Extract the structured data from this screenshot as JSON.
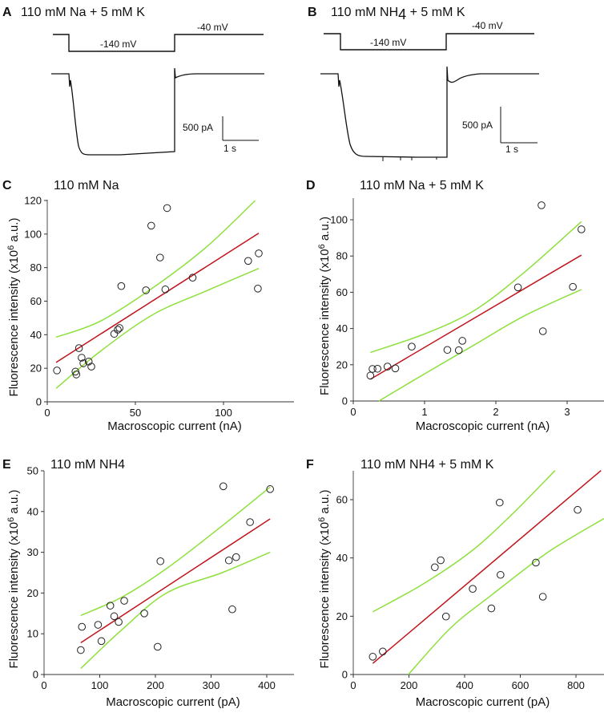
{
  "traces": [
    {
      "panel": "A",
      "title": "110 mM Na + 5 mM K",
      "step_labels": [
        "-140 mV",
        "-40 mV"
      ],
      "scale_current": "500 pA",
      "scale_time": "1 s"
    },
    {
      "panel": "B",
      "title_main": "110 mM NH",
      "title_sub": "4",
      "title_rest": " + 5 mM K",
      "step_labels": [
        "-140 mV",
        "-40 mV"
      ],
      "scale_current": "500 pA",
      "scale_time": "1 s"
    }
  ],
  "colors": {
    "fit": "#c0141c",
    "ci": "#8ee03c",
    "axis": "#777777",
    "marker": "#222222"
  },
  "chart_data": [
    {
      "panel": "C",
      "type": "scatter",
      "title": "110 mM Na",
      "xlabel": "Macroscopic current (nA)",
      "ylabel": "Fluorescence intensity (x10",
      "ylabel_sup": "6",
      "ylabel_end": " a.u.)",
      "xlim": [
        0,
        140
      ],
      "ylim": [
        0,
        120
      ],
      "xticks": [
        0,
        50,
        100
      ],
      "yticks": [
        0,
        20,
        40,
        60,
        80,
        100,
        120
      ],
      "points": [
        [
          5.5,
          18.7
        ],
        [
          16,
          18
        ],
        [
          16.5,
          16.3
        ],
        [
          18,
          32
        ],
        [
          19.5,
          26.3
        ],
        [
          20.5,
          23
        ],
        [
          23.5,
          24
        ],
        [
          25,
          21
        ],
        [
          38,
          40.5
        ],
        [
          40,
          43
        ],
        [
          41,
          44
        ],
        [
          42,
          69
        ],
        [
          56,
          66.5
        ],
        [
          59,
          105
        ],
        [
          64,
          86
        ],
        [
          67,
          67
        ],
        [
          68,
          115.5
        ],
        [
          82.5,
          74
        ],
        [
          114,
          84
        ],
        [
          119.5,
          67.5
        ],
        [
          120,
          88.5
        ]
      ],
      "fit": [
        [
          5,
          23.5
        ],
        [
          120,
          100.5
        ]
      ],
      "ci_upper": [
        [
          5,
          38.5
        ],
        [
          30,
          48
        ],
        [
          60,
          68
        ],
        [
          90,
          92
        ],
        [
          118,
          120
        ]
      ],
      "ci_lower": [
        [
          5,
          8
        ],
        [
          30,
          30
        ],
        [
          60,
          52
        ],
        [
          90,
          66
        ],
        [
          120,
          79.5
        ]
      ]
    },
    {
      "panel": "D",
      "type": "scatter",
      "title": "110 mM Na + 5 mM K",
      "xlabel": "Macroscopic current (nA)",
      "ylabel": "Fluorescence intensity (x10",
      "ylabel_sup": "6",
      "ylabel_end": " a.u.)",
      "xlim": [
        0,
        3.4
      ],
      "ylim": [
        0,
        112
      ],
      "xticks": [
        0,
        1,
        2,
        3
      ],
      "yticks": [
        0,
        20,
        40,
        60,
        80,
        100
      ],
      "points": [
        [
          0.24,
          14
        ],
        [
          0.27,
          17.7
        ],
        [
          0.34,
          17.8
        ],
        [
          0.48,
          19
        ],
        [
          0.59,
          18
        ],
        [
          0.82,
          30
        ],
        [
          1.32,
          28.2
        ],
        [
          1.48,
          28
        ],
        [
          1.53,
          33.2
        ],
        [
          2.31,
          62.7
        ],
        [
          2.64,
          108
        ],
        [
          2.66,
          38.5
        ],
        [
          3.08,
          63
        ],
        [
          3.2,
          94.7
        ]
      ],
      "fit": [
        [
          0.24,
          12
        ],
        [
          3.2,
          80.5
        ]
      ],
      "ci_upper": [
        [
          0.24,
          26.8
        ],
        [
          1,
          37
        ],
        [
          1.7,
          50
        ],
        [
          2.4,
          71
        ],
        [
          3.2,
          99
        ]
      ],
      "ci_lower": [
        [
          0.36,
          0
        ],
        [
          1,
          15
        ],
        [
          1.7,
          31
        ],
        [
          2.4,
          47
        ],
        [
          3.2,
          61.5
        ]
      ]
    },
    {
      "panel": "E",
      "type": "scatter",
      "title": "110 mM NH4",
      "xlabel": "Macroscopic current (pA)",
      "ylabel": "Fluorescence intensity (x10",
      "ylabel_sup": "6",
      "ylabel_end": " a.u.)",
      "xlim": [
        0,
        450
      ],
      "ylim": [
        0,
        50
      ],
      "xticks": [
        0,
        100,
        200,
        300,
        400
      ],
      "yticks": [
        0,
        10,
        20,
        30,
        40,
        50
      ],
      "points": [
        [
          66,
          6
        ],
        [
          68,
          11.7
        ],
        [
          97,
          12.2
        ],
        [
          103,
          8.2
        ],
        [
          119,
          16.9
        ],
        [
          126,
          14.3
        ],
        [
          134,
          12.9
        ],
        [
          144,
          18.1
        ],
        [
          180,
          15
        ],
        [
          204,
          6.8
        ],
        [
          209,
          27.8
        ],
        [
          322,
          46.2
        ],
        [
          332,
          28
        ],
        [
          338,
          16
        ],
        [
          345,
          28.8
        ],
        [
          370,
          37.4
        ],
        [
          406,
          45.5
        ]
      ],
      "fit": [
        [
          66,
          7.8
        ],
        [
          406,
          38.2
        ]
      ],
      "ci_upper": [
        [
          66,
          14.5
        ],
        [
          140,
          19
        ],
        [
          220,
          26
        ],
        [
          320,
          36.5
        ],
        [
          406,
          46
        ]
      ],
      "ci_lower": [
        [
          66,
          1.5
        ],
        [
          140,
          11
        ],
        [
          220,
          20
        ],
        [
          320,
          25
        ],
        [
          406,
          30
        ]
      ]
    },
    {
      "panel": "F",
      "type": "scatter",
      "title": "110 mM NH4 + 5 mM K",
      "xlabel": "Macroscopic current (pA)",
      "ylabel": "Fluorescence intensity (x10",
      "ylabel_sup": "6",
      "ylabel_end": " a.u.)",
      "xlim": [
        0,
        900
      ],
      "ylim": [
        0,
        70
      ],
      "xticks": [
        0,
        200,
        400,
        600,
        800
      ],
      "yticks": [
        0,
        20,
        40,
        60
      ],
      "points": [
        [
          70,
          6.1
        ],
        [
          106,
          7.9
        ],
        [
          293,
          36.8
        ],
        [
          314,
          39.2
        ],
        [
          333,
          19.9
        ],
        [
          429,
          29.4
        ],
        [
          496,
          22.7
        ],
        [
          526,
          59
        ],
        [
          529,
          34.2
        ],
        [
          656,
          38.4
        ],
        [
          681,
          26.7
        ],
        [
          806,
          56.5
        ]
      ],
      "fit": [
        [
          70,
          3.8
        ],
        [
          890,
          70
        ]
      ],
      "ci_upper": [
        [
          70,
          21.5
        ],
        [
          250,
          31
        ],
        [
          420,
          42
        ],
        [
          560,
          54
        ],
        [
          725,
          70
        ]
      ],
      "ci_lower": [
        [
          198,
          0
        ],
        [
          350,
          16
        ],
        [
          500,
          27.5
        ],
        [
          700,
          42
        ],
        [
          900,
          53.5
        ]
      ]
    }
  ]
}
